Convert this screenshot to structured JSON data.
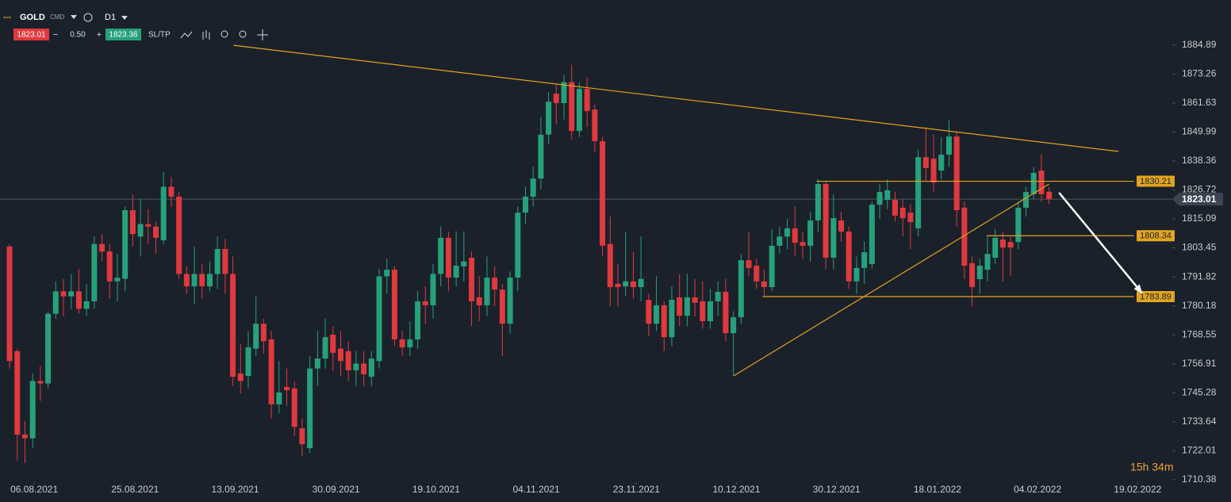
{
  "toolbar": {
    "symbol": "GOLD",
    "market": "CMD",
    "timeframe": "D1",
    "sell": 1823.01,
    "lot": "0.50",
    "buy": 1823.36,
    "sltp": "SL/TP"
  },
  "timer": "15h 34m",
  "chart_data": {
    "type": "candlestick",
    "open": [
      1804,
      1762,
      1728.5,
      1727,
      1750,
      1749,
      1777,
      1786,
      1784,
      1786,
      1779,
      1782,
      1805,
      1802,
      1790,
      1791,
      1818.6,
      1808,
      1813,
      1812,
      1806.5,
      1828,
      1824,
      1793,
      1788,
      1793,
      1788,
      1793,
      1803,
      1793,
      1753,
      1752,
      1763,
      1773,
      1766.7,
      1740.6,
      1747.6,
      1747,
      1731,
      1723,
      1755,
      1759,
      1768.6,
      1763,
      1762,
      1754.3,
      1757,
      1751.7,
      1758,
      1792,
      1794.7,
      1766.7,
      1763.5,
      1766.7,
      1782,
      1780.4,
      1793,
      1807.5,
      1791.5,
      1796,
      1799.5,
      1783.6,
      1780.4,
      1791.5,
      1786.7,
      1773,
      1791.5,
      1817.6,
      1824,
      1831.3,
      1848.9,
      1865.4,
      1861.6,
      1870,
      1850.4,
      1867.3,
      1859,
      1846.3,
      1805,
      1789,
      1788,
      1790,
      1787.7,
      1782.6,
      1773,
      1780.4,
      1767.6,
      1783.6,
      1776.2,
      1783.6,
      1782,
      1774,
      1782,
      1785.8,
      1769.2,
      1775.6,
      1798.5,
      1796.3,
      1790,
      1787.7,
      1804.3,
      1808,
      1811.3,
      1805.8,
      1804.3,
      1814.5,
      1829.1,
      1799.5,
      1814.5,
      1810,
      1790,
      1795.4,
      1797,
      1820.8,
      1822.7,
      1822.7,
      1819.6,
      1817.6,
      1811.3,
      1839.9,
      1839.3,
      1834.5,
      1840.9,
      1848.2,
      1819.6,
      1797.3,
      1790.9,
      1794.7,
      1799.5,
      1806.8,
      1805.8,
      1805.8,
      1819.6,
      1825,
      1834.5,
      1826
    ],
    "high": [
      1805,
      1763,
      1734,
      1753,
      1756,
      1778,
      1790,
      1791,
      1793,
      1795,
      1789,
      1808,
      1809,
      1805,
      1801,
      1820,
      1825,
      1823,
      1819,
      1814,
      1834,
      1832,
      1826,
      1796,
      1804,
      1797,
      1798,
      1808,
      1807,
      1800,
      1765,
      1770,
      1784,
      1775,
      1770,
      1758,
      1755,
      1750,
      1735,
      1760,
      1770,
      1775,
      1772,
      1770,
      1766,
      1762,
      1762,
      1762,
      1795,
      1799,
      1796,
      1770,
      1774,
      1786,
      1788,
      1797,
      1812,
      1810,
      1810,
      1810,
      1802,
      1792,
      1800,
      1796,
      1789,
      1794,
      1820,
      1828,
      1836,
      1856,
      1866,
      1869,
      1873,
      1877,
      1870,
      1872,
      1861,
      1848,
      1816,
      1797,
      1810,
      1802,
      1808,
      1785,
      1792,
      1782,
      1788,
      1793,
      1793,
      1791,
      1790,
      1787,
      1790,
      1791,
      1778,
      1801,
      1810,
      1799,
      1795,
      1811,
      1812,
      1815,
      1820,
      1810,
      1818,
      1831,
      1830,
      1825,
      1818,
      1812,
      1800,
      1806,
      1822,
      1829,
      1831,
      1826,
      1823,
      1821,
      1843,
      1852,
      1849,
      1848,
      1855,
      1850,
      1822,
      1800,
      1799,
      1808,
      1811,
      1810,
      1808,
      1822,
      1828,
      1836,
      1841,
      1828
    ],
    "low": [
      1755,
      1718,
      1717,
      1723,
      1742,
      1747,
      1775,
      1776,
      1779,
      1777,
      1776,
      1779,
      1798,
      1783,
      1782,
      1786,
      1804,
      1800,
      1805,
      1801,
      1805,
      1820,
      1791,
      1785,
      1781,
      1783,
      1786,
      1787,
      1785,
      1748,
      1745,
      1747,
      1760,
      1761,
      1735,
      1737,
      1740,
      1728,
      1720,
      1721,
      1748,
      1755,
      1754,
      1752,
      1750,
      1748,
      1748,
      1748,
      1755,
      1785,
      1764,
      1760,
      1760,
      1763,
      1773,
      1775,
      1788,
      1786,
      1788,
      1790,
      1772,
      1774,
      1776,
      1780,
      1760,
      1769,
      1786,
      1813,
      1820,
      1827,
      1845,
      1853,
      1855,
      1847,
      1848,
      1852,
      1842,
      1800,
      1780,
      1780,
      1784,
      1783,
      1782,
      1768,
      1770,
      1762,
      1764,
      1772,
      1772,
      1776,
      1771,
      1771,
      1776,
      1766,
      1752,
      1773,
      1792,
      1787,
      1784,
      1786,
      1801,
      1803,
      1800,
      1799,
      1798,
      1810,
      1795,
      1795,
      1806,
      1787,
      1785,
      1789,
      1795,
      1815,
      1819,
      1814,
      1808,
      1803,
      1808,
      1830,
      1826,
      1831,
      1836,
      1812,
      1791,
      1780,
      1785,
      1790,
      1797,
      1790,
      1792,
      1803,
      1816,
      1823,
      1822,
      1821
    ],
    "close": [
      1758,
      1728.5,
      1727,
      1750,
      1749,
      1777,
      1786,
      1784,
      1786,
      1779,
      1782,
      1805,
      1802,
      1790,
      1791.5,
      1818.6,
      1809,
      1813,
      1812,
      1807.5,
      1828,
      1824,
      1793,
      1788,
      1793,
      1788,
      1793,
      1803,
      1793,
      1751.7,
      1750,
      1763.5,
      1773,
      1766,
      1740.6,
      1745.4,
      1746.3,
      1731.6,
      1724.6,
      1755,
      1759,
      1767.6,
      1761.3,
      1758,
      1754.3,
      1757,
      1752.7,
      1759,
      1792,
      1794.7,
      1766.7,
      1763.5,
      1766.7,
      1782,
      1780.4,
      1793,
      1807.5,
      1791.5,
      1796.3,
      1798,
      1782,
      1780.4,
      1791.5,
      1786.7,
      1773,
      1791.5,
      1817.6,
      1824,
      1831.3,
      1848.9,
      1862.2,
      1861.6,
      1870,
      1850.4,
      1867.3,
      1858.4,
      1846.3,
      1804.3,
      1787.7,
      1787.7,
      1790,
      1787.7,
      1791,
      1773,
      1780.4,
      1767.6,
      1782.6,
      1776.2,
      1783.6,
      1781.4,
      1774,
      1782,
      1785.8,
      1769.2,
      1775.6,
      1798.5,
      1795.4,
      1790,
      1787.7,
      1804.3,
      1808,
      1811.3,
      1805.5,
      1804.3,
      1814.5,
      1829.1,
      1799.5,
      1815.4,
      1810,
      1790,
      1795.4,
      1801.7,
      1820.8,
      1825.9,
      1826.6,
      1816.4,
      1815.4,
      1813.8,
      1839.9,
      1835.5,
      1829.7,
      1840.9,
      1848.2,
      1818.6,
      1796.3,
      1787.7,
      1796.3,
      1801,
      1807.5,
      1803.6,
      1803.6,
      1819.6,
      1825.9,
      1833.6,
      1825,
      1823
    ],
    "up_color": "#26a17b",
    "down_color": "#e0393e",
    "xlim": [
      -1.24,
      151.0
    ],
    "ylim": [
      1710,
      1903
    ],
    "xticks": [
      {
        "value": 3.2,
        "label": "06.08.2021"
      },
      {
        "value": 16.3,
        "label": "25.08.2021"
      },
      {
        "value": 29.3,
        "label": "13.09.2021"
      },
      {
        "value": 42.4,
        "label": "30.09.2021"
      },
      {
        "value": 55.4,
        "label": "19.10.2021"
      },
      {
        "value": 68.4,
        "label": "04.11.2021"
      },
      {
        "value": 81.4,
        "label": "23.11.2021"
      },
      {
        "value": 94.4,
        "label": "10.12.2021"
      },
      {
        "value": 107.4,
        "label": "30.12.2021"
      },
      {
        "value": 120.5,
        "label": "18.01.2022"
      },
      {
        "value": 133.5,
        "label": "04.02.2022"
      },
      {
        "value": 146.5,
        "label": "19.02.2022"
      }
    ],
    "yticks": [
      1884.89,
      1873.26,
      1861.63,
      1849.99,
      1838.36,
      1826.72,
      1815.09,
      1803.45,
      1791.82,
      1780.18,
      1768.55,
      1756.91,
      1745.28,
      1733.64,
      1722.01,
      1710.38
    ],
    "current_price": 1823.01,
    "levels": [
      1830.21,
      1808.34,
      1783.89
    ],
    "level_starts": [
      104.8,
      126.9,
      97.8
    ],
    "level_end": 146,
    "line_color": "#e2a41f",
    "trendlines": [
      {
        "from": [
          29.1,
          1884.8
        ],
        "to": [
          144,
          1842.2
        ]
      },
      {
        "from": [
          94.0,
          1752
        ],
        "to": [
          135,
          1829.1
        ]
      }
    ],
    "arrow": {
      "from": [
        136.3,
        1825.6
      ],
      "to": [
        147.1,
        1785.2
      ]
    }
  }
}
